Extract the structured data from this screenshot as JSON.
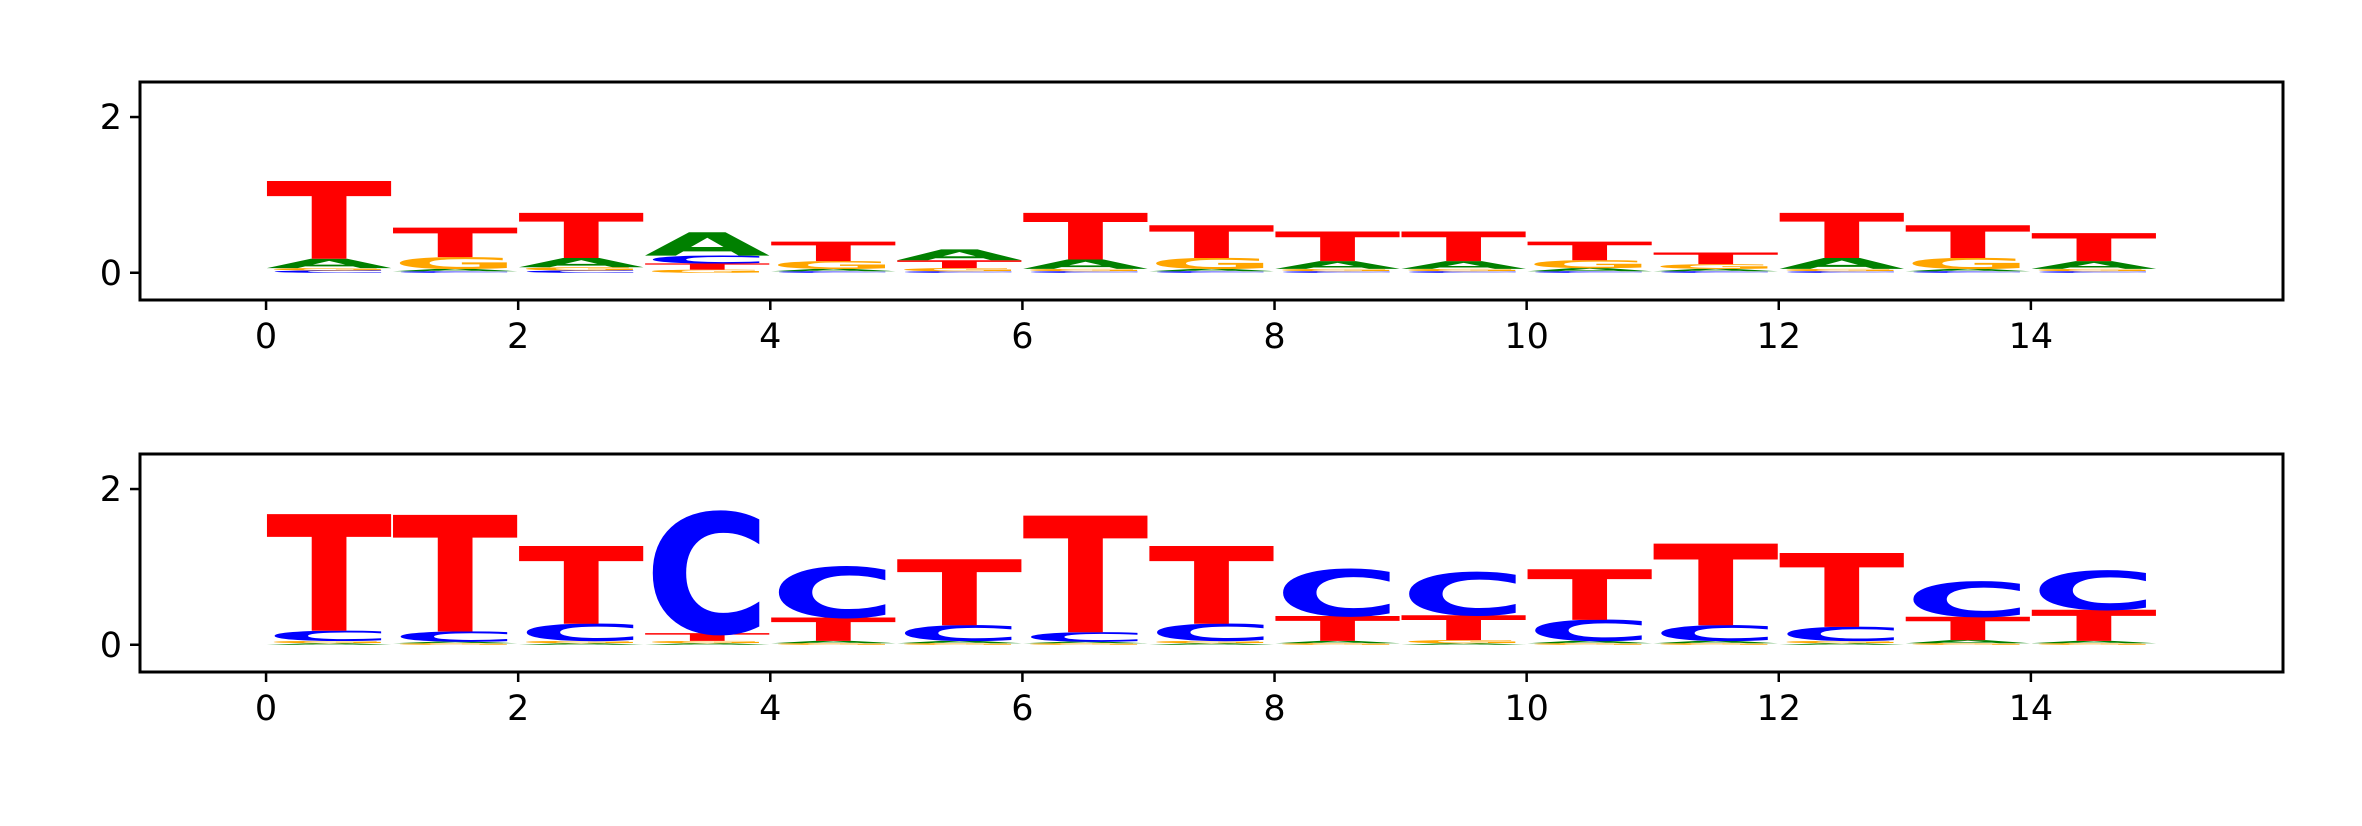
{
  "colors": {
    "A": "#008000",
    "C": "#0000ff",
    "G": "#ffa500",
    "T": "#ff0000"
  },
  "chart_data": [
    {
      "type": "sequence-logo",
      "title": "",
      "xlabel": "",
      "ylabel": "",
      "xlim": [
        -1,
        16
      ],
      "ylim": [
        -0.35,
        2.45
      ],
      "x_ticks": [
        "0",
        "2",
        "4",
        "6",
        "8",
        "10",
        "12",
        "14"
      ],
      "y_ticks": [
        "0",
        "2"
      ],
      "positions": [
        {
          "T": 1.0,
          "A": 0.12,
          "C": 0.03,
          "G": 0.03
        },
        {
          "T": 0.38,
          "G": 0.15,
          "A": 0.03,
          "C": 0.02
        },
        {
          "T": 0.58,
          "A": 0.12,
          "G": 0.04,
          "C": 0.03
        },
        {
          "A": 0.3,
          "C": 0.1,
          "T": 0.08,
          "G": 0.04
        },
        {
          "T": 0.25,
          "G": 0.1,
          "A": 0.03,
          "C": 0.02
        },
        {
          "A": 0.14,
          "T": 0.1,
          "G": 0.04,
          "C": 0.02
        },
        {
          "T": 0.6,
          "A": 0.12,
          "G": 0.03,
          "C": 0.02
        },
        {
          "T": 0.42,
          "G": 0.14,
          "A": 0.03,
          "C": 0.02
        },
        {
          "T": 0.38,
          "A": 0.1,
          "G": 0.03,
          "C": 0.02
        },
        {
          "T": 0.38,
          "A": 0.1,
          "G": 0.03,
          "C": 0.02
        },
        {
          "T": 0.24,
          "G": 0.1,
          "A": 0.04,
          "C": 0.02
        },
        {
          "T": 0.15,
          "G": 0.06,
          "A": 0.03,
          "C": 0.02
        },
        {
          "T": 0.58,
          "A": 0.14,
          "G": 0.03,
          "C": 0.02
        },
        {
          "T": 0.42,
          "G": 0.14,
          "A": 0.03,
          "C": 0.02
        },
        {
          "T": 0.36,
          "A": 0.1,
          "G": 0.03,
          "C": 0.02
        }
      ]
    },
    {
      "type": "sequence-logo",
      "title": "",
      "xlabel": "",
      "ylabel": "",
      "xlim": [
        -1,
        16
      ],
      "ylim": [
        -0.35,
        2.45
      ],
      "x_ticks": [
        "0",
        "2",
        "4",
        "6",
        "8",
        "10",
        "12",
        "14"
      ],
      "y_ticks": [
        "0",
        "2"
      ],
      "positions": [
        {
          "T": 1.5,
          "C": 0.13,
          "G": 0.03,
          "A": 0.02
        },
        {
          "T": 1.5,
          "C": 0.13,
          "G": 0.02,
          "A": 0.02
        },
        {
          "T": 1.0,
          "C": 0.22,
          "G": 0.03,
          "A": 0.02
        },
        {
          "C": 1.55,
          "T": 0.1,
          "G": 0.03,
          "A": 0.02
        },
        {
          "C": 0.65,
          "T": 0.3,
          "A": 0.03,
          "G": 0.02
        },
        {
          "T": 0.85,
          "C": 0.2,
          "A": 0.03,
          "G": 0.02
        },
        {
          "T": 1.5,
          "C": 0.12,
          "G": 0.02,
          "A": 0.02
        },
        {
          "T": 1.0,
          "C": 0.22,
          "G": 0.03,
          "A": 0.02
        },
        {
          "C": 0.6,
          "T": 0.32,
          "A": 0.03,
          "G": 0.02
        },
        {
          "C": 0.55,
          "T": 0.32,
          "G": 0.04,
          "A": 0.02
        },
        {
          "T": 0.65,
          "C": 0.27,
          "A": 0.03,
          "G": 0.02
        },
        {
          "T": 1.05,
          "C": 0.2,
          "A": 0.03,
          "G": 0.02
        },
        {
          "T": 0.95,
          "C": 0.18,
          "G": 0.03,
          "A": 0.02
        },
        {
          "C": 0.45,
          "T": 0.3,
          "A": 0.04,
          "G": 0.02
        },
        {
          "C": 0.5,
          "T": 0.4,
          "A": 0.03,
          "G": 0.02
        }
      ]
    }
  ]
}
